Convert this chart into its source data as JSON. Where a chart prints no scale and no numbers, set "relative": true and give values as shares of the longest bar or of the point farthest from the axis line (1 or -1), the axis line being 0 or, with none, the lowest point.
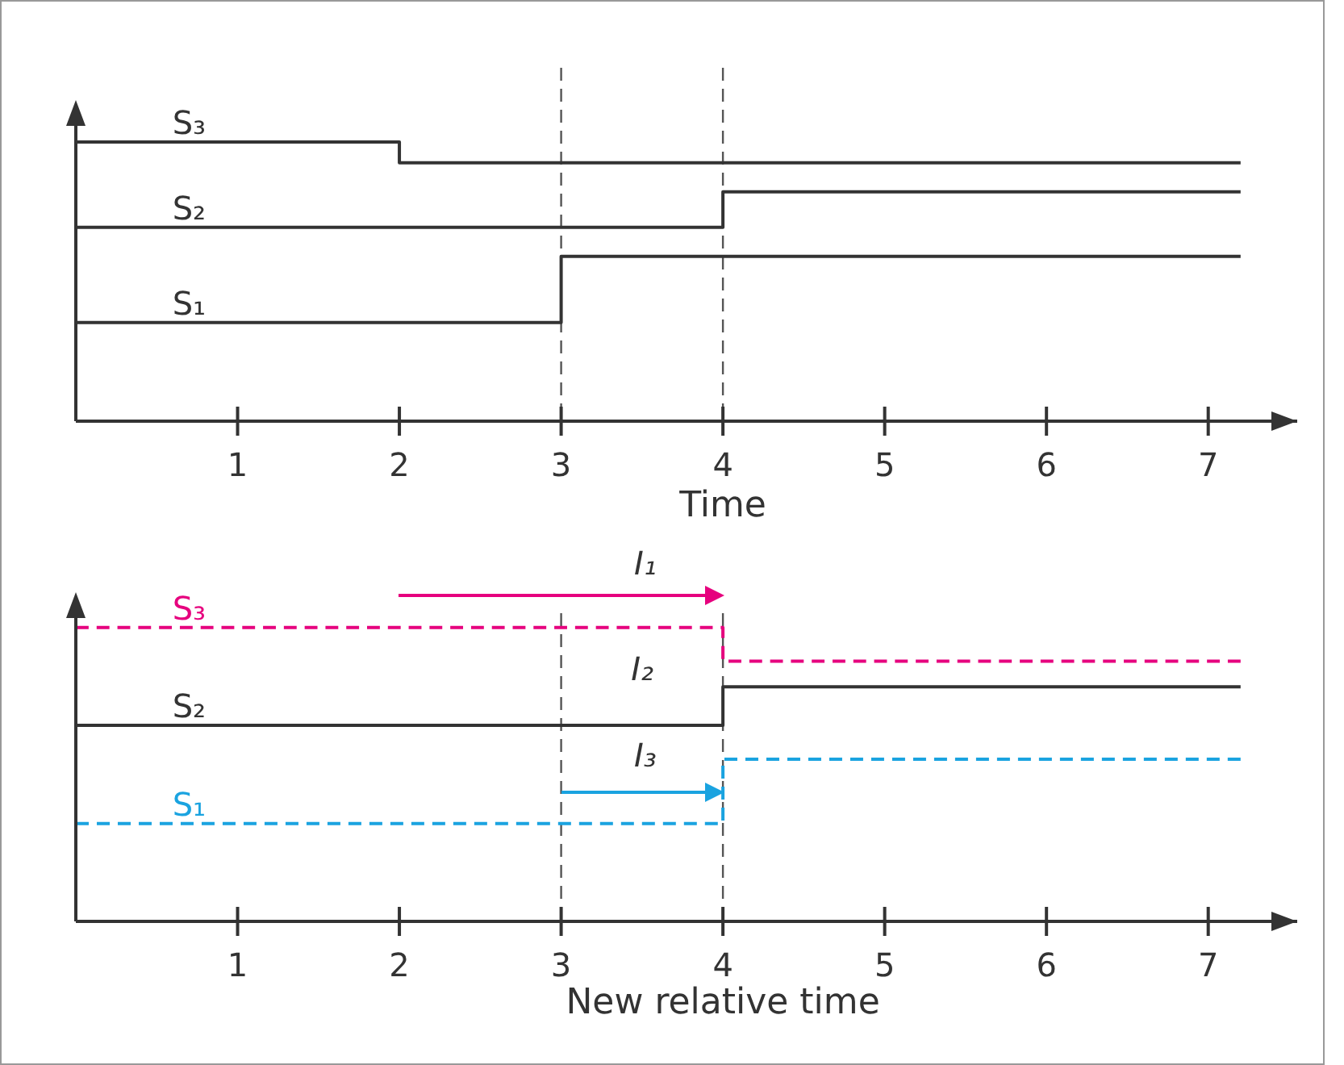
{
  "chart_data": [
    {
      "type": "step",
      "relative": true,
      "xlabel": "Time",
      "xlim": [
        0,
        7.55
      ],
      "xticks": [
        1,
        2,
        3,
        4,
        5,
        6,
        7
      ],
      "ref_lines": [
        {
          "axis": "x",
          "value": 3,
          "line_style": "dashed",
          "color": "#555555"
        },
        {
          "axis": "x",
          "value": 4,
          "line_style": "dashed",
          "color": "#555555"
        }
      ],
      "series": [
        {
          "name": "S₃",
          "color": "#333333",
          "line_style": "solid",
          "x": [
            0,
            2,
            7.2
          ],
          "values": [
            1,
            0.925,
            0.925
          ]
        },
        {
          "name": "S₂",
          "color": "#333333",
          "line_style": "solid",
          "x": [
            0,
            4,
            7.2
          ],
          "values": [
            0.694,
            0.821,
            0.821
          ]
        },
        {
          "name": "S₁",
          "color": "#333333",
          "line_style": "solid",
          "x": [
            0,
            3,
            7.2
          ],
          "values": [
            0.353,
            0.59,
            0.59
          ]
        }
      ]
    },
    {
      "type": "step",
      "relative": true,
      "xlabel": "New relative time",
      "xlim": [
        0,
        7.55
      ],
      "xticks": [
        1,
        2,
        3,
        4,
        5,
        6,
        7
      ],
      "ref_lines": [
        {
          "axis": "x",
          "value": 3,
          "line_style": "dashed",
          "color": "#555555"
        },
        {
          "axis": "x",
          "value": 4,
          "line_style": "dashed",
          "color": "#555555"
        }
      ],
      "annotations": [
        "I₁",
        {
          "text": "I₂",
          "x": 4,
          "y": 0.798
        },
        "I₃"
      ],
      "series": [
        {
          "name": "S₃",
          "color": "#e6007e",
          "line_style": "dashed",
          "x": [
            0,
            4,
            7.2
          ],
          "values": [
            1,
            0.885,
            0.885
          ]
        },
        {
          "name": "S₂",
          "color": "#333333",
          "line_style": "solid",
          "x": [
            0,
            4,
            7.2
          ],
          "values": [
            0.667,
            0.798,
            0.798
          ]
        },
        {
          "name": "S₁",
          "color": "#1aa3e0",
          "line_style": "dashed",
          "x": [
            0,
            4,
            7.2
          ],
          "values": [
            0.333,
            0.552,
            0.552
          ]
        }
      ]
    }
  ]
}
